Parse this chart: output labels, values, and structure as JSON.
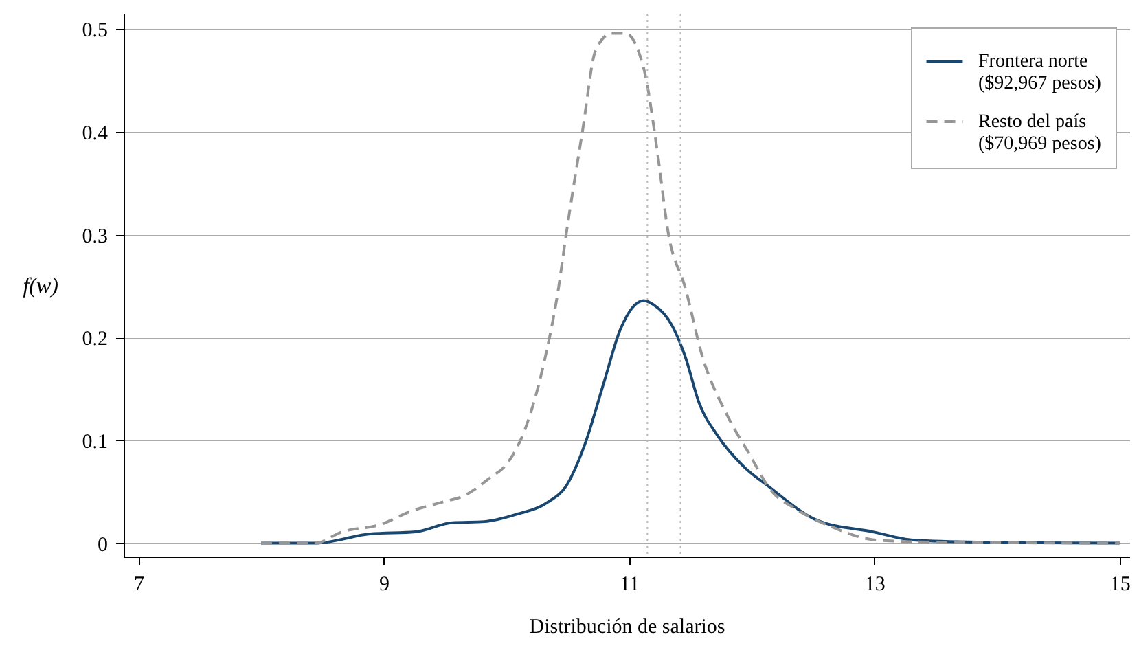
{
  "chart_data": {
    "type": "line",
    "xlabel": "Distribución de salarios",
    "ylabel": "f(w)",
    "xlim": [
      6.88,
      15.08
    ],
    "xticks": [
      7,
      9,
      11,
      13,
      15
    ],
    "ylim": [
      -0.013,
      0.515
    ],
    "yticks": [
      0,
      0.1,
      0.2,
      0.3,
      0.4,
      0.5
    ],
    "grid": "y",
    "legend": "top right",
    "ref_lines": [
      {
        "axis": "x",
        "value": 11.15,
        "color": "#b8b8b8",
        "line_style": "dotted"
      },
      {
        "axis": "x",
        "value": 11.42,
        "color": "#b8b8b8",
        "line_style": "dotted"
      }
    ],
    "series": [
      {
        "name": "Frontera norte\n($92,967 pesos)",
        "color": "#1a476f",
        "line_style": "solid",
        "x": [
          8,
          8.44,
          8.89,
          9.26,
          9.56,
          9.82,
          10.08,
          10.34,
          10.49,
          10.64,
          10.79,
          10.93,
          11.12,
          11.2,
          11.35,
          11.46,
          11.57,
          11.72,
          11.94,
          12.13,
          12.54,
          12.99,
          13.32,
          13.84,
          15
        ],
        "values": [
          0,
          0,
          0.009,
          0.011,
          0.02,
          0.021,
          0.028,
          0.04,
          0.056,
          0.096,
          0.154,
          0.208,
          0.236,
          0.232,
          0.212,
          0.181,
          0.137,
          0.105,
          0.074,
          0.056,
          0.022,
          0.011,
          0.003,
          0.001,
          0
        ]
      },
      {
        "name": "Resto del país\n($70,969 pesos)",
        "color": "#969696",
        "line_style": "dashed",
        "x": [
          8,
          8.44,
          8.66,
          8.97,
          9.22,
          9.48,
          9.67,
          9.86,
          10.01,
          10.15,
          10.31,
          10.42,
          10.49,
          10.62,
          10.73,
          10.86,
          10.97,
          11.12,
          11.23,
          11.32,
          11.46,
          11.6,
          11.79,
          11.98,
          12.16,
          12.35,
          12.65,
          13.02,
          13.5,
          15
        ],
        "values": [
          0,
          0,
          0.011,
          0.018,
          0.031,
          0.04,
          0.047,
          0.063,
          0.078,
          0.11,
          0.177,
          0.244,
          0.302,
          0.4,
          0.48,
          0.496,
          0.496,
          0.462,
          0.382,
          0.302,
          0.248,
          0.181,
          0.127,
          0.087,
          0.051,
          0.034,
          0.016,
          0.003,
          0.001,
          0
        ]
      }
    ]
  }
}
